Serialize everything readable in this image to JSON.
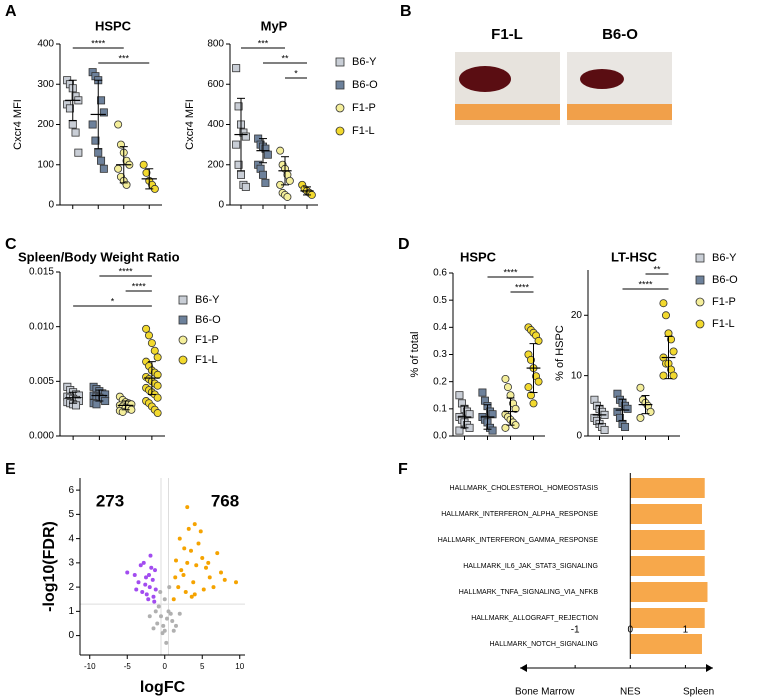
{
  "photos": {
    "panel": "B",
    "labels": [
      "F1-L",
      "B6-O"
    ]
  },
  "chart_data": [
    {
      "type": "dotplot",
      "panel": "A",
      "title": "HSPC",
      "ylabel": "Cxcr4 MFI",
      "ylim": [
        0,
        400
      ],
      "yticks": [
        0,
        100,
        200,
        300,
        400
      ],
      "series": [
        {
          "name": "B6-Y",
          "color": "#c9ced6",
          "marker": "square",
          "values": [
            310,
            300,
            290,
            270,
            260,
            250,
            240,
            200,
            180,
            130
          ],
          "mean": 260,
          "sd": 50
        },
        {
          "name": "B6-O",
          "color": "#6d819b",
          "marker": "square",
          "values": [
            330,
            320,
            310,
            260,
            230,
            200,
            160,
            130,
            110,
            90
          ],
          "mean": 225,
          "sd": 85
        },
        {
          "name": "F1-P",
          "color": "#f4ee9a",
          "marker": "circle",
          "values": [
            200,
            150,
            130,
            110,
            100,
            90,
            70,
            60,
            50
          ],
          "mean": 100,
          "sd": 45
        },
        {
          "name": "F1-L",
          "color": "#f2d92e",
          "marker": "circle",
          "values": [
            100,
            80,
            60,
            50,
            40
          ],
          "mean": 65,
          "sd": 25
        }
      ],
      "significance": [
        {
          "label": "****",
          "from": 0,
          "to": 2
        },
        {
          "label": "***",
          "from": 1,
          "to": 3
        }
      ]
    },
    {
      "type": "dotplot",
      "title": "MyP",
      "ylabel": "Cxcr4 MFI",
      "legend": true,
      "ylim": [
        0,
        800
      ],
      "yticks": [
        0,
        200,
        400,
        600,
        800
      ],
      "series": [
        {
          "name": "B6-Y",
          "color": "#c9ced6",
          "marker": "square",
          "values": [
            680,
            490,
            400,
            360,
            340,
            300,
            200,
            150,
            100,
            90
          ],
          "mean": 350,
          "sd": 180
        },
        {
          "name": "B6-O",
          "color": "#6d819b",
          "marker": "square",
          "values": [
            330,
            300,
            290,
            280,
            250,
            200,
            180,
            150,
            110
          ],
          "mean": 270,
          "sd": 60
        },
        {
          "name": "F1-P",
          "color": "#f4ee9a",
          "marker": "circle",
          "values": [
            270,
            200,
            180,
            150,
            120,
            100,
            60,
            50,
            40
          ],
          "mean": 170,
          "sd": 70
        },
        {
          "name": "F1-L",
          "color": "#f2d92e",
          "marker": "circle",
          "values": [
            100,
            80,
            70,
            60,
            50
          ],
          "mean": 70,
          "sd": 20
        }
      ],
      "significance": [
        {
          "label": "***",
          "from": 0,
          "to": 2
        },
        {
          "label": "**",
          "from": 1,
          "to": 3
        },
        {
          "label": "*",
          "from": 2,
          "to": 3
        }
      ]
    },
    {
      "type": "dotplot",
      "panel": "C",
      "title": "Spleen/Body Weight Ratio",
      "legend": true,
      "ylim": [
        0,
        0.015
      ],
      "yticks": [
        {
          "value": 0,
          "label": "0.000"
        },
        {
          "value": 0.005,
          "label": "0.005"
        },
        {
          "value": 0.01,
          "label": "0.010"
        },
        {
          "value": 0.015,
          "label": "0.015"
        }
      ],
      "series": [
        {
          "name": "B6-Y",
          "color": "#c9ced6",
          "marker": "square",
          "values": [
            0.0045,
            0.0042,
            0.004,
            0.0038,
            0.0037,
            0.0036,
            0.0035,
            0.0034,
            0.0033,
            0.0032,
            0.0031,
            0.003,
            0.0029,
            0.0028
          ],
          "mean": 0.0035,
          "sd": 0.0005
        },
        {
          "name": "B6-O",
          "color": "#6d819b",
          "marker": "square",
          "values": [
            0.0045,
            0.0043,
            0.0041,
            0.0039,
            0.0038,
            0.0037,
            0.0036,
            0.0035,
            0.0034,
            0.0032,
            0.003,
            0.0029
          ],
          "mean": 0.0037,
          "sd": 0.0005
        },
        {
          "name": "F1-P",
          "color": "#f4ee9a",
          "marker": "circle",
          "values": [
            0.0036,
            0.0033,
            0.0031,
            0.003,
            0.0029,
            0.0028,
            0.0027,
            0.0026,
            0.0025,
            0.0024,
            0.0023,
            0.0022
          ],
          "mean": 0.0028,
          "sd": 0.0004
        },
        {
          "name": "F1-L",
          "color": "#f2d92e",
          "marker": "circle",
          "values": [
            0.0098,
            0.0092,
            0.0085,
            0.0078,
            0.0072,
            0.0068,
            0.0064,
            0.006,
            0.0058,
            0.0056,
            0.0054,
            0.0052,
            0.005,
            0.0048,
            0.0046,
            0.0044,
            0.0042,
            0.004,
            0.0038,
            0.0035,
            0.0032,
            0.003,
            0.0027,
            0.0024,
            0.0021
          ],
          "mean": 0.0053,
          "sd": 0.0015
        }
      ],
      "significance": [
        {
          "label": "****",
          "from": 1,
          "to": 3
        },
        {
          "label": "****",
          "from": 2,
          "to": 3
        },
        {
          "label": "*",
          "from": 0,
          "to": 3
        }
      ]
    },
    {
      "type": "dotplot",
      "panel": "D",
      "title": "HSPC",
      "ylabel": "% of total",
      "ylim": [
        0,
        0.6
      ],
      "yticks": [
        {
          "value": 0,
          "label": "0.0"
        },
        0.1,
        0.2,
        0.3,
        0.4,
        0.5,
        0.6
      ],
      "series": [
        {
          "name": "B6-Y",
          "color": "#c9ced6",
          "marker": "square",
          "values": [
            0.15,
            0.12,
            0.1,
            0.09,
            0.08,
            0.07,
            0.06,
            0.05,
            0.04,
            0.03,
            0.02
          ],
          "mean": 0.07,
          "sd": 0.04
        },
        {
          "name": "B6-O",
          "color": "#6d819b",
          "marker": "square",
          "values": [
            0.16,
            0.13,
            0.11,
            0.09,
            0.08,
            0.07,
            0.06,
            0.05,
            0.03,
            0.02
          ],
          "mean": 0.07,
          "sd": 0.045
        },
        {
          "name": "F1-P",
          "color": "#f4ee9a",
          "marker": "circle",
          "values": [
            0.21,
            0.18,
            0.15,
            0.12,
            0.1,
            0.08,
            0.07,
            0.06,
            0.05,
            0.04,
            0.03
          ],
          "mean": 0.09,
          "sd": 0.05
        },
        {
          "name": "F1-L",
          "color": "#f2d92e",
          "marker": "circle",
          "values": [
            0.4,
            0.39,
            0.38,
            0.37,
            0.35,
            0.3,
            0.28,
            0.25,
            0.22,
            0.2,
            0.18,
            0.15,
            0.12
          ],
          "mean": 0.25,
          "sd": 0.09
        }
      ],
      "significance": [
        {
          "label": "****",
          "from": 1,
          "to": 3
        },
        {
          "label": "****",
          "from": 2,
          "to": 3
        }
      ]
    },
    {
      "type": "dotplot",
      "title": "LT-HSC",
      "ylabel": "% of HSPC",
      "legend": true,
      "ylim": [
        0,
        27.5
      ],
      "yticks": [
        0,
        10,
        20
      ],
      "series": [
        {
          "name": "B6-Y",
          "color": "#c9ced6",
          "marker": "square",
          "values": [
            6,
            5,
            4.5,
            4,
            3.5,
            3,
            2.5,
            2,
            1.5,
            1
          ],
          "mean": 3.5,
          "sd": 1.5
        },
        {
          "name": "B6-O",
          "color": "#6d819b",
          "marker": "square",
          "values": [
            7,
            6,
            5.5,
            5,
            4.5,
            4,
            3,
            2,
            1.5
          ],
          "mean": 4.3,
          "sd": 1.8
        },
        {
          "name": "F1-P",
          "color": "#f4ee9a",
          "marker": "circle",
          "values": [
            8,
            6,
            5.5,
            5,
            4,
            3
          ],
          "mean": 5.2,
          "sd": 1.5
        },
        {
          "name": "F1-L",
          "color": "#f2d92e",
          "marker": "circle",
          "values": [
            22,
            20,
            17,
            16,
            14,
            13,
            12,
            12,
            11,
            10,
            10
          ],
          "mean": 13,
          "sd": 3.5
        }
      ],
      "significance": [
        {
          "label": "**",
          "from": 2,
          "to": 3
        },
        {
          "label": "****",
          "from": 1,
          "to": 3
        }
      ]
    },
    {
      "type": "scatter",
      "panel": "E",
      "xlabel": "logFC",
      "ylabel": "-log10(FDR)",
      "xlim": [
        -11.3,
        10.7
      ],
      "ylim": [
        -0.8,
        6.5
      ],
      "xticks": [
        -10,
        -5,
        0,
        5,
        10
      ],
      "yticks": [
        0,
        1,
        2,
        3,
        4,
        5,
        6
      ],
      "hlines": [
        1.3
      ],
      "vlines": [
        -0.5,
        0.5
      ],
      "annotations": [
        "273",
        "768"
      ],
      "series": [
        {
          "color": "#b0b0b0",
          "x": [
            -1,
            -0.5,
            0,
            0.5,
            1,
            -1.5,
            1.5,
            -0.8,
            0.8,
            -0.3,
            0.3,
            -1.2,
            1.2,
            0,
            -0.6,
            0.6,
            -2,
            2,
            -0.2,
            0.2
          ],
          "values": [
            0.5,
            0.8,
            0.2,
            1,
            0.6,
            0.3,
            0.4,
            1.2,
            0.9,
            0.1,
            0.7,
            1,
            0.2,
            1.5,
            1.8,
            2,
            0.8,
            0.9,
            0.4,
            -0.3
          ]
        },
        {
          "color": "#a24cf0",
          "x": [
            -1.5,
            -2,
            -2.5,
            -3,
            -1.8,
            -2.2,
            -3.5,
            -1.2,
            -2.8,
            -4,
            -1.6,
            -2.4,
            -3.2,
            -1.4,
            -2.6,
            -5,
            -1.9,
            -3.8,
            -2.1,
            -1.3
          ],
          "values": [
            1.6,
            2,
            2.4,
            1.8,
            2.8,
            1.5,
            2.2,
            1.9,
            3,
            2.5,
            2.3,
            1.7,
            2.9,
            1.4,
            2.1,
            2.6,
            3.3,
            1.9,
            2.5,
            2.7
          ]
        },
        {
          "color": "#f5a300",
          "x": [
            1.2,
            1.8,
            2.5,
            3,
            3.5,
            4,
            4.5,
            5,
            5.5,
            6,
            2,
            2.8,
            3.2,
            3.8,
            4.2,
            1.5,
            2.2,
            6.5,
            7,
            8,
            9.5,
            4.8,
            3.6,
            2.6,
            5.2,
            1.4,
            3,
            4,
            5.8,
            7.5
          ],
          "values": [
            1.5,
            2,
            2.5,
            3,
            3.5,
            4.6,
            3.8,
            3.2,
            2.8,
            2.4,
            4,
            1.8,
            4.4,
            2.2,
            2.9,
            3.1,
            2.7,
            2,
            3.4,
            2.3,
            2.2,
            4.3,
            1.6,
            3.6,
            1.9,
            2.4,
            5.3,
            1.7,
            3,
            2.6
          ]
        }
      ]
    },
    {
      "type": "hbar",
      "panel": "F",
      "xlabel": "NES",
      "left_label": "Bone Marrow",
      "right_label": "Spleen",
      "xlim": [
        -2,
        1.5
      ],
      "xticks": [
        -1,
        0,
        1
      ],
      "color": "#f7a84b",
      "categories": [
        "HALLMARK_CHOLESTEROL_HOMEOSTASIS",
        "HALLMARK_INTERFERON_ALPHA_RESPONSE",
        "HALLMARK_INTERFERON_GAMMA_RESPONSE",
        "HALLMARK_IL6_JAK_STAT3_SIGNALING",
        "HALLMARK_TNFA_SIGNALING_VIA_NFKB",
        "HALLMARK_ALLOGRAFT_REJECTION",
        "HALLMARK_NOTCH_SIGNALING"
      ],
      "values": [
        1.35,
        1.3,
        1.35,
        1.35,
        1.4,
        1.35,
        1.3
      ]
    }
  ]
}
